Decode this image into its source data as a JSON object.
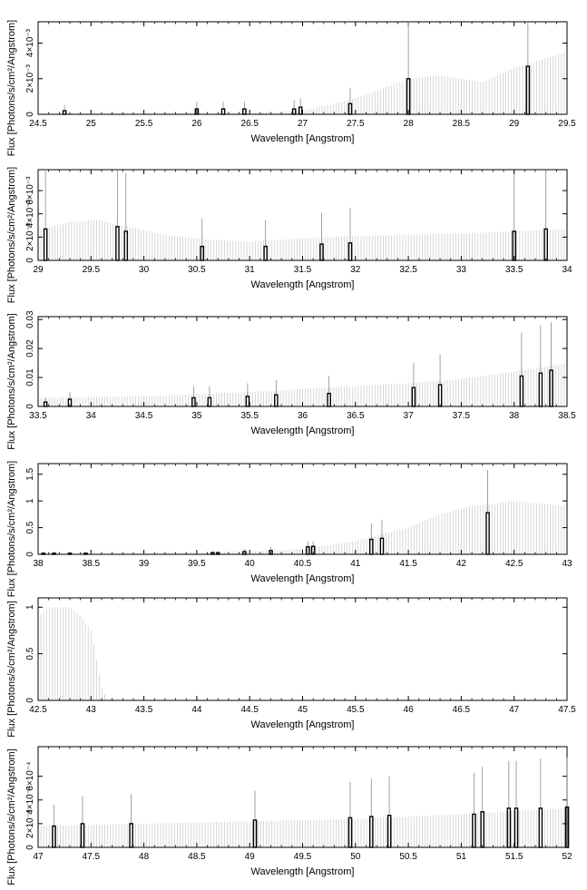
{
  "chart_data": [
    {
      "type": "bar",
      "xlabel": "Wavelength [Angstrom]",
      "ylabel": "Flux [Photons/s/cm²/Angstrom]",
      "xlim": [
        24.5,
        29.5
      ],
      "ylim": [
        0,
        0.0052
      ],
      "xticks": [
        "24.5",
        "25",
        "25.5",
        "26",
        "26.5",
        "27",
        "27.5",
        "28",
        "28.5",
        "29",
        "29.5"
      ],
      "yticks": [
        {
          "value": 0,
          "label": "0"
        },
        {
          "value": 0.002,
          "label": "2×10⁻³"
        },
        {
          "value": 0.004,
          "label": "4×10⁻³"
        }
      ],
      "background": [
        [
          24.5,
          5e-05
        ],
        [
          25.5,
          5e-05
        ],
        [
          26.5,
          8e-05
        ],
        [
          27,
          0.0002
        ],
        [
          27.3,
          0.0006
        ],
        [
          27.6,
          0.0011
        ],
        [
          28,
          0.002
        ],
        [
          28.3,
          0.0022
        ],
        [
          28.7,
          0.0018
        ],
        [
          29,
          0.0026
        ],
        [
          29.5,
          0.0035
        ]
      ],
      "lines": [
        {
          "x": 24.75,
          "y": 0.0002,
          "err": 0.0003
        },
        {
          "x": 26.0,
          "y": 0.0003,
          "err": 0.0004
        },
        {
          "x": 26.25,
          "y": 0.0003,
          "err": 0.0004
        },
        {
          "x": 26.45,
          "y": 0.0003,
          "err": 0.0004
        },
        {
          "x": 26.92,
          "y": 0.0003,
          "err": 0.0005
        },
        {
          "x": 26.98,
          "y": 0.0004,
          "err": 0.0005
        },
        {
          "x": 27.45,
          "y": 0.0006,
          "err": 0.0009
        },
        {
          "x": 28.0,
          "y": 0.002,
          "err": 0.0035
        },
        {
          "x": 29.13,
          "y": 0.0027,
          "err": 0.0051
        }
      ]
    },
    {
      "type": "bar",
      "xlabel": "Wavelength [Angstrom]",
      "ylabel": "Flux [Photons/s/cm²/Angstrom]",
      "xlim": [
        29,
        34
      ],
      "ylim": [
        0,
        0.0078
      ],
      "xticks": [
        "29",
        "29.5",
        "30",
        "30.5",
        "31",
        "31.5",
        "32",
        "32.5",
        "33",
        "33.5",
        "34"
      ],
      "yticks": [
        {
          "value": 0,
          "label": "0"
        },
        {
          "value": 0.002,
          "label": "2×10⁻³"
        },
        {
          "value": 0.004,
          "label": "4×10⁻³"
        },
        {
          "value": 0.006,
          "label": "6×10⁻³"
        }
      ],
      "background": [
        [
          29,
          0.0026
        ],
        [
          29.3,
          0.0033
        ],
        [
          29.55,
          0.0035
        ],
        [
          29.8,
          0.003
        ],
        [
          30.2,
          0.0022
        ],
        [
          30.6,
          0.0018
        ],
        [
          31,
          0.0016
        ],
        [
          31.5,
          0.0019
        ],
        [
          32,
          0.0021
        ],
        [
          33,
          0.0023
        ],
        [
          34,
          0.0027
        ]
      ],
      "lines": [
        {
          "x": 29.07,
          "y": 0.0027,
          "err": 0.0055
        },
        {
          "x": 29.75,
          "y": 0.0029,
          "err": 0.006
        },
        {
          "x": 29.83,
          "y": 0.0025,
          "err": 0.005
        },
        {
          "x": 30.55,
          "y": 0.0012,
          "err": 0.0024
        },
        {
          "x": 31.15,
          "y": 0.0012,
          "err": 0.0023
        },
        {
          "x": 31.68,
          "y": 0.0014,
          "err": 0.0027
        },
        {
          "x": 31.95,
          "y": 0.0015,
          "err": 0.003
        },
        {
          "x": 33.5,
          "y": 0.0025,
          "err": 0.0049
        },
        {
          "x": 33.8,
          "y": 0.0027,
          "err": 0.0054
        }
      ]
    },
    {
      "type": "bar",
      "xlabel": "Wavelength [Angstrom]",
      "ylabel": "Flux [Photons/s/cm²/Angstrom]",
      "xlim": [
        33.5,
        38.5
      ],
      "ylim": [
        0,
        0.031
      ],
      "xticks": [
        "33.5",
        "34",
        "34.5",
        "35",
        "35.5",
        "36",
        "36.5",
        "37",
        "37.5",
        "38",
        "38.5"
      ],
      "yticks": [
        {
          "value": 0,
          "label": "0"
        },
        {
          "value": 0.01,
          "label": "0.01"
        },
        {
          "value": 0.02,
          "label": "0.02"
        },
        {
          "value": 0.03,
          "label": "0.03"
        }
      ],
      "background": [
        [
          33.5,
          0.003
        ],
        [
          34.5,
          0.0035
        ],
        [
          35.5,
          0.005
        ],
        [
          36.5,
          0.007
        ],
        [
          37,
          0.008
        ],
        [
          37.5,
          0.0095
        ],
        [
          38,
          0.012
        ],
        [
          38.5,
          0.015
        ]
      ],
      "lines": [
        {
          "x": 33.57,
          "y": 0.0015,
          "err": 0.0015
        },
        {
          "x": 33.8,
          "y": 0.0025,
          "err": 0.0025
        },
        {
          "x": 34.97,
          "y": 0.003,
          "err": 0.004
        },
        {
          "x": 35.12,
          "y": 0.003,
          "err": 0.004
        },
        {
          "x": 35.48,
          "y": 0.0035,
          "err": 0.0045
        },
        {
          "x": 35.75,
          "y": 0.004,
          "err": 0.005
        },
        {
          "x": 36.25,
          "y": 0.0045,
          "err": 0.006
        },
        {
          "x": 37.05,
          "y": 0.0065,
          "err": 0.0085
        },
        {
          "x": 37.3,
          "y": 0.0075,
          "err": 0.0105
        },
        {
          "x": 38.07,
          "y": 0.0105,
          "err": 0.015
        },
        {
          "x": 38.25,
          "y": 0.0115,
          "err": 0.0165
        },
        {
          "x": 38.35,
          "y": 0.0125,
          "err": 0.0165
        }
      ]
    },
    {
      "type": "bar",
      "xlabel": "Wavelength [Angstrom]",
      "ylabel": "Flux [Photons/s/cm²/Angstrom]",
      "xlim": [
        38,
        43
      ],
      "ylim": [
        0,
        1.7
      ],
      "xticks": [
        "38",
        "38.5",
        "39",
        "39.5",
        "40",
        "40.5",
        "41",
        "41.5",
        "42",
        "42.5",
        "43"
      ],
      "yticks": [
        {
          "value": 0,
          "label": "0"
        },
        {
          "value": 0.5,
          "label": "0.5"
        },
        {
          "value": 1,
          "label": "1"
        },
        {
          "value": 1.5,
          "label": "1.5"
        }
      ],
      "background": [
        [
          38,
          0.02
        ],
        [
          39,
          0.02
        ],
        [
          40,
          0.05
        ],
        [
          40.5,
          0.1
        ],
        [
          41,
          0.25
        ],
        [
          41.5,
          0.5
        ],
        [
          41.8,
          0.75
        ],
        [
          42.1,
          0.9
        ],
        [
          42.5,
          1.0
        ],
        [
          43,
          0.9
        ]
      ],
      "lines": [
        {
          "x": 38.05,
          "y": 0.02,
          "err": 0.02
        },
        {
          "x": 38.15,
          "y": 0.02,
          "err": 0.02
        },
        {
          "x": 38.3,
          "y": 0.02,
          "err": 0.02
        },
        {
          "x": 38.45,
          "y": 0.02,
          "err": 0.02
        },
        {
          "x": 39.65,
          "y": 0.03,
          "err": 0.03
        },
        {
          "x": 39.7,
          "y": 0.03,
          "err": 0.03
        },
        {
          "x": 39.95,
          "y": 0.05,
          "err": 0.05
        },
        {
          "x": 40.2,
          "y": 0.07,
          "err": 0.07
        },
        {
          "x": 40.55,
          "y": 0.14,
          "err": 0.1
        },
        {
          "x": 40.6,
          "y": 0.15,
          "err": 0.1
        },
        {
          "x": 41.15,
          "y": 0.28,
          "err": 0.3
        },
        {
          "x": 41.25,
          "y": 0.3,
          "err": 0.35
        },
        {
          "x": 42.25,
          "y": 0.78,
          "err": 0.8
        }
      ]
    },
    {
      "type": "bar",
      "xlabel": "Wavelength [Angstrom]",
      "ylabel": "Flux [Photons/s/cm²/Angstrom]",
      "xlim": [
        42.5,
        47.5
      ],
      "ylim": [
        0,
        1.1
      ],
      "xticks": [
        "42.5",
        "43",
        "43.5",
        "44",
        "44.5",
        "45",
        "45.5",
        "46",
        "46.5",
        "47",
        "47.5"
      ],
      "yticks": [
        {
          "value": 0,
          "label": "0"
        },
        {
          "value": 0.5,
          "label": "0.5"
        },
        {
          "value": 1,
          "label": "1"
        }
      ],
      "background": [
        [
          42.5,
          0.9
        ],
        [
          42.6,
          1.0
        ],
        [
          42.8,
          1.0
        ],
        [
          42.9,
          0.9
        ],
        [
          43.0,
          0.75
        ],
        [
          43.05,
          0.45
        ],
        [
          43.1,
          0.15
        ],
        [
          43.15,
          0.02
        ]
      ],
      "lines": []
    },
    {
      "type": "bar",
      "xlabel": "Wavelength [Angstrom]",
      "ylabel": "Flux [Photons/s/cm²/Angstrom]",
      "xlim": [
        47,
        52
      ],
      "ylim": [
        0,
        0.00085
      ],
      "xticks": [
        "47",
        "47.5",
        "48",
        "48.5",
        "49",
        "49.5",
        "50",
        "50.5",
        "51",
        "51.5",
        "52"
      ],
      "yticks": [
        {
          "value": 0,
          "label": "0"
        },
        {
          "value": 0.0002,
          "label": "2×10⁻⁴"
        },
        {
          "value": 0.0004,
          "label": "4×10⁻⁴"
        },
        {
          "value": 0.0006,
          "label": "6×10⁻⁴"
        }
      ],
      "background": [
        [
          47,
          0.00018
        ],
        [
          48,
          0.0002
        ],
        [
          49,
          0.00022
        ],
        [
          50,
          0.00024
        ],
        [
          51,
          0.00028
        ],
        [
          52,
          0.00033
        ]
      ],
      "lines": [
        {
          "x": 47.15,
          "y": 0.00018,
          "err": 0.00018
        },
        {
          "x": 47.42,
          "y": 0.0002,
          "err": 0.00023
        },
        {
          "x": 47.88,
          "y": 0.0002,
          "err": 0.00025
        },
        {
          "x": 49.05,
          "y": 0.00023,
          "err": 0.00025
        },
        {
          "x": 49.95,
          "y": 0.00025,
          "err": 0.0003
        },
        {
          "x": 50.15,
          "y": 0.00026,
          "err": 0.00032
        },
        {
          "x": 50.32,
          "y": 0.00027,
          "err": 0.00033
        },
        {
          "x": 51.12,
          "y": 0.00028,
          "err": 0.00035
        },
        {
          "x": 51.2,
          "y": 0.0003,
          "err": 0.00038
        },
        {
          "x": 51.45,
          "y": 0.00033,
          "err": 0.0004
        },
        {
          "x": 51.52,
          "y": 0.00033,
          "err": 0.0004
        },
        {
          "x": 51.75,
          "y": 0.00033,
          "err": 0.00042
        },
        {
          "x": 52.0,
          "y": 0.00034,
          "err": 0.00042
        }
      ]
    }
  ]
}
